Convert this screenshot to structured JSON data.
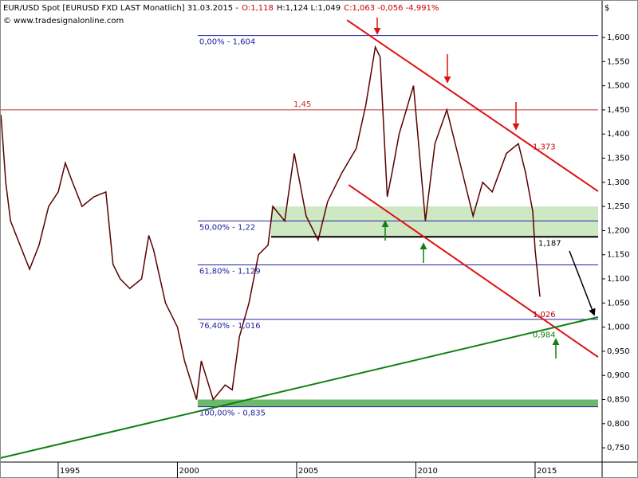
{
  "chart_data": {
    "type": "line",
    "header": [
      {
        "text": "EUR/USD Spot [EURUSD FXD LAST Monatlich] 31.03.2015 -",
        "color": "#000000"
      },
      {
        "text": "O:1,118",
        "color": "#cc0000"
      },
      {
        "text": "H:1,124 L:1,049",
        "color": "#000000"
      },
      {
        "text": "C:1,063 -0,056 -4,991%",
        "color": "#cc0000"
      }
    ],
    "source": "© www.tradesignalonline.com",
    "y_unit": "$",
    "series": [
      {
        "color": "#5a0000",
        "x": [
          1992.6,
          1992.8,
          1993.0,
          1993.4,
          1993.8,
          1994.2,
          1994.6,
          1995.0,
          1995.3,
          1995.6,
          1996.0,
          1996.5,
          1997.0,
          1997.3,
          1997.6,
          1998.0,
          1998.5,
          1998.8,
          1999.0,
          1999.5,
          2000.0,
          2000.3,
          2000.8,
          2001.0,
          2001.5,
          2002.0,
          2002.3,
          2002.6,
          2003.0,
          2003.4,
          2003.8,
          2004.0,
          2004.5,
          2004.9,
          2005.4,
          2005.9,
          2006.3,
          2006.9,
          2007.5,
          2007.9,
          2008.3,
          2008.5,
          2008.8,
          2009.0,
          2009.3,
          2009.9,
          2010.4,
          2010.8,
          2011.3,
          2011.8,
          2012.4,
          2012.8,
          2013.2,
          2013.8,
          2014.3,
          2014.6,
          2014.9,
          2015.0,
          2015.2
        ],
        "values": [
          1.44,
          1.3,
          1.22,
          1.17,
          1.12,
          1.17,
          1.25,
          1.28,
          1.34,
          1.3,
          1.25,
          1.27,
          1.28,
          1.13,
          1.1,
          1.08,
          1.1,
          1.19,
          1.16,
          1.05,
          1.0,
          0.93,
          0.85,
          0.93,
          0.85,
          0.88,
          0.87,
          0.98,
          1.05,
          1.15,
          1.17,
          1.25,
          1.22,
          1.36,
          1.23,
          1.18,
          1.26,
          1.32,
          1.37,
          1.46,
          1.58,
          1.56,
          1.27,
          1.32,
          1.4,
          1.5,
          1.22,
          1.38,
          1.45,
          1.35,
          1.23,
          1.3,
          1.28,
          1.36,
          1.38,
          1.32,
          1.24,
          1.16,
          1.063
        ]
      }
    ],
    "levels": [
      {
        "label": "0,00% - 1,604",
        "value": 1.604,
        "x_start": 2000.85,
        "color": "#2020a0"
      },
      {
        "label": "50,00% - 1,22",
        "value": 1.22,
        "x_start": 2000.85,
        "color": "#2020a0"
      },
      {
        "label": "61,80% - 1,129",
        "value": 1.129,
        "x_start": 2000.85,
        "color": "#2020a0"
      },
      {
        "label": "76,40% - 1,016",
        "value": 1.016,
        "x_start": 2000.85,
        "color": "#2020a0"
      },
      {
        "label": "100,00% - 0,835",
        "value": 0.835,
        "x_start": 2000.85,
        "color": "#2020a0"
      },
      {
        "label": "1,45",
        "value": 1.45,
        "x_start": 1992.56,
        "color": "#c03030"
      },
      {
        "label": "1,187",
        "value": 1.187,
        "x_start": 2003.93,
        "color": "#000000"
      }
    ],
    "zones": [
      {
        "range": [
          1.187,
          1.25
        ],
        "x_start": 2003.93,
        "color": "#cfe8c4"
      },
      {
        "range": [
          0.835,
          0.85
        ],
        "x_start": 2000.85,
        "color": "#6cb86c"
      }
    ],
    "trend_lines": [
      {
        "x": [
          2007.11,
          2017.64
        ],
        "values": [
          1.636,
          1.2815
        ],
        "color": "#e01010"
      },
      {
        "x": [
          2007.18,
          2017.64
        ],
        "values": [
          1.2947,
          0.938
        ],
        "color": "#e01010"
      },
      {
        "x": [
          1992.56,
          2017.64
        ],
        "values": [
          0.7287,
          1.0208
        ],
        "color": "#108010"
      }
    ],
    "annotations": [
      {
        "label": "1,373",
        "x": 2014.9,
        "value": 1.373,
        "color": "#cc0000"
      },
      {
        "label": "1,026",
        "x": 2014.9,
        "value": 1.026,
        "color": "#cc0000"
      },
      {
        "label": "0,984",
        "x": 2014.9,
        "value": 0.984,
        "color": "#108010"
      }
    ],
    "xlim": [
      1992.56,
      2017.81
    ],
    "xticks": [
      1995,
      2000,
      2005,
      2010,
      2015
    ],
    "ylim": [
      0.7205,
      1.6776
    ],
    "yticks": [
      {
        "value": 0.75,
        "label": "0,750"
      },
      {
        "value": 0.8,
        "label": "0,800"
      },
      {
        "value": 0.85,
        "label": "0,850"
      },
      {
        "value": 0.9,
        "label": "0,900"
      },
      {
        "value": 0.95,
        "label": "0,950"
      },
      {
        "value": 1.0,
        "label": "1,000"
      },
      {
        "value": 1.05,
        "label": "1,050"
      },
      {
        "value": 1.1,
        "label": "1,100"
      },
      {
        "value": 1.15,
        "label": "1,150"
      },
      {
        "value": 1.2,
        "label": "1,200"
      },
      {
        "value": 1.25,
        "label": "1,250"
      },
      {
        "value": 1.3,
        "label": "1,300"
      },
      {
        "value": 1.35,
        "label": "1,350"
      },
      {
        "value": 1.4,
        "label": "1,400"
      },
      {
        "value": 1.45,
        "label": "1,450"
      },
      {
        "value": 1.5,
        "label": "1,500"
      },
      {
        "value": 1.55,
        "label": "1,550"
      },
      {
        "value": 1.6,
        "label": "1,600"
      }
    ]
  }
}
